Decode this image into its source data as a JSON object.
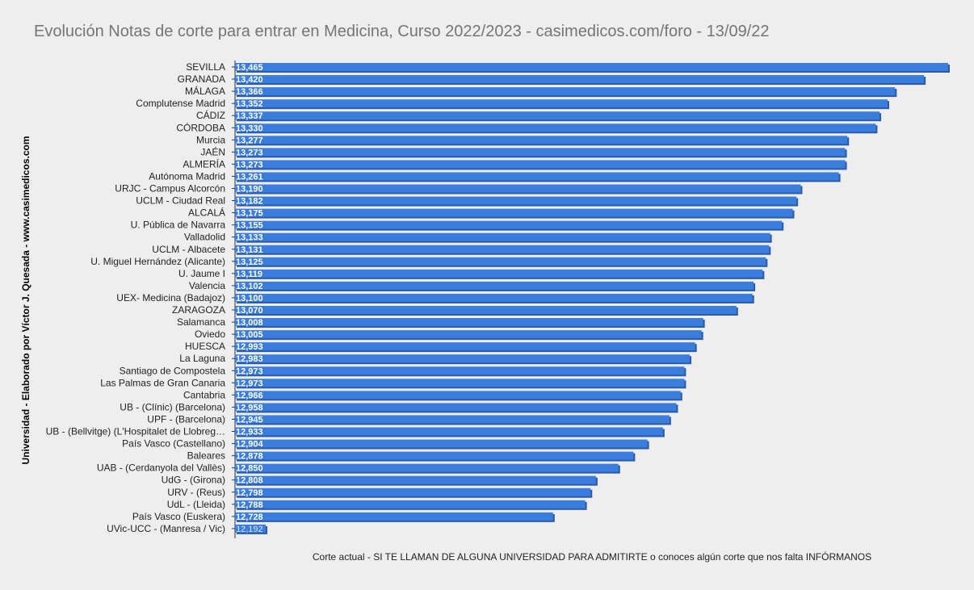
{
  "chart_data": {
    "type": "bar",
    "orientation": "horizontal",
    "title": "Evolución Notas de corte para entrar en Medicina, Curso 2022/2023 - casimedicos.com/foro - 13/09/22",
    "ylabel": "Universidad  - Elaborado por Víctor J. Quesada - www.casimedicos.com",
    "xlabel": "Corte actual - SI TE LLAMAN DE ALGUNA UNIVERSIDAD PARA ADMITIRTE o conoces algún corte que nos falta INFÓRMANOS",
    "bar_color": "#3b7ddd",
    "bar_shadow_color": "#2a5aa8",
    "background": "#eeeeee",
    "grid": false,
    "legend": "none",
    "categories": [
      "SEVILLA",
      "GRANADA",
      "MÁLAGA",
      "Complutense Madrid",
      "CÁDIZ",
      "CÓRDOBA",
      "Murcia",
      "JAÉN",
      "ALMERÍA",
      "Autónoma Madrid",
      "URJC - Campus Alcorcón",
      "UCLM - Ciudad Real",
      "ALCALÁ",
      "U. Pública de Navarra",
      "Valladolid",
      "UCLM - Albacete",
      "U. Miguel Hernández (Alicante)",
      "U. Jaume I",
      "Valencia",
      "UEX- Medicina (Badajoz)",
      "ZARAGOZA",
      "Salamanca",
      "Oviedo",
      "HUESCA",
      "La Laguna",
      "Santiago de Compostela",
      "Las Palmas de Gran Canaria",
      "Cantabria",
      "UB - (Clínic) (Barcelona)",
      "UPF - (Barcelona)",
      "UB - (Bellvitge) (L'Hospitalet de Llobreg…",
      "País Vasco (Castellano)",
      "Baleares",
      "UAB - (Cerdanyola del Vallès)",
      "UdG - (Girona)",
      "URV - (Reus)",
      "UdL - (Lleida)",
      "País Vasco (Euskera)",
      "UVic-UCC - (Manresa / Vic)"
    ],
    "values": [
      13.465,
      13.42,
      13.366,
      13.352,
      13.337,
      13.33,
      13.277,
      13.273,
      13.273,
      13.261,
      13.19,
      13.182,
      13.175,
      13.155,
      13.133,
      13.131,
      13.125,
      13.119,
      13.102,
      13.1,
      13.07,
      13.008,
      13.005,
      12.993,
      12.983,
      12.973,
      12.973,
      12.966,
      12.958,
      12.945,
      12.933,
      12.904,
      12.878,
      12.85,
      12.808,
      12.798,
      12.788,
      12.728,
      12.192
    ],
    "value_labels": [
      "13,465",
      "13,420",
      "13,366",
      "13,352",
      "13,337",
      "13,330",
      "13,277",
      "13,273",
      "13,273",
      "13,261",
      "13,190",
      "13,182",
      "13,175",
      "13,155",
      "13,133",
      "13,131",
      "13,125",
      "13,119",
      "13,102",
      "13,100",
      "13,070",
      "13,008",
      "13,005",
      "12,993",
      "12,983",
      "12,973",
      "12,973",
      "12,966",
      "12,958",
      "12,945",
      "12,933",
      "12,904",
      "12,878",
      "12,850",
      "12,808",
      "12,798",
      "12,788",
      "12,728",
      "12,192"
    ],
    "xlim": [
      12.192,
      13.465
    ]
  }
}
